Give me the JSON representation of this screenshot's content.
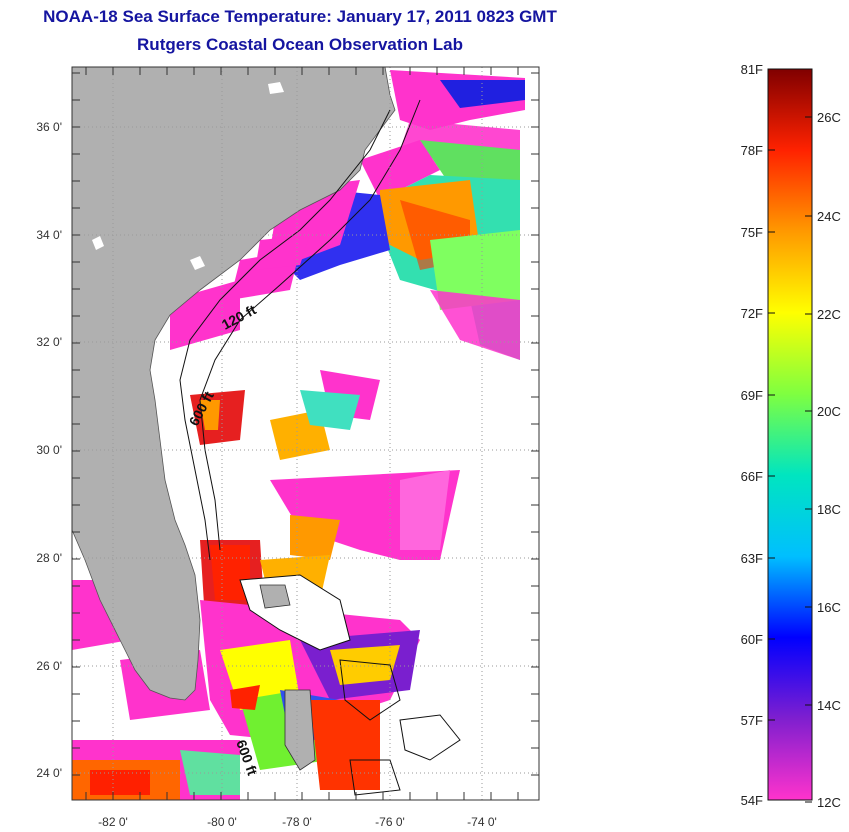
{
  "title_line1": "NOAA-18 Sea Surface Temperature:  January 17, 2011 0823 GMT",
  "title_line2": "Rutgers Coastal Ocean Observation Lab",
  "lon_ticks": [
    "-82 0'",
    "-80 0'",
    "-78 0'",
    "-76 0'",
    "-74 0'"
  ],
  "lat_ticks": [
    "36 0'",
    "34 0'",
    "32 0'",
    "30 0'",
    "28 0'",
    "26 0'",
    "24 0'"
  ],
  "depth_labels": {
    "d120": "120 ft",
    "d600a": "600 ft",
    "d600b": "600 ft"
  },
  "colorbar": {
    "f_labels": [
      "81F",
      "78F",
      "75F",
      "72F",
      "69F",
      "66F",
      "63F",
      "60F",
      "57F",
      "54F"
    ],
    "c_labels": [
      "26C",
      "24C",
      "22C",
      "20C",
      "18C",
      "16C",
      "14C",
      "12C"
    ],
    "colors": [
      "#ff33cc",
      "#7f1fcf",
      "#0000ff",
      "#00bfff",
      "#00e5c0",
      "#7fff40",
      "#ffff00",
      "#ff9900",
      "#ff2200",
      "#800000"
    ]
  },
  "colors": {
    "land": "#b0b0b0",
    "title": "#1515a0",
    "grid": "#999999"
  }
}
